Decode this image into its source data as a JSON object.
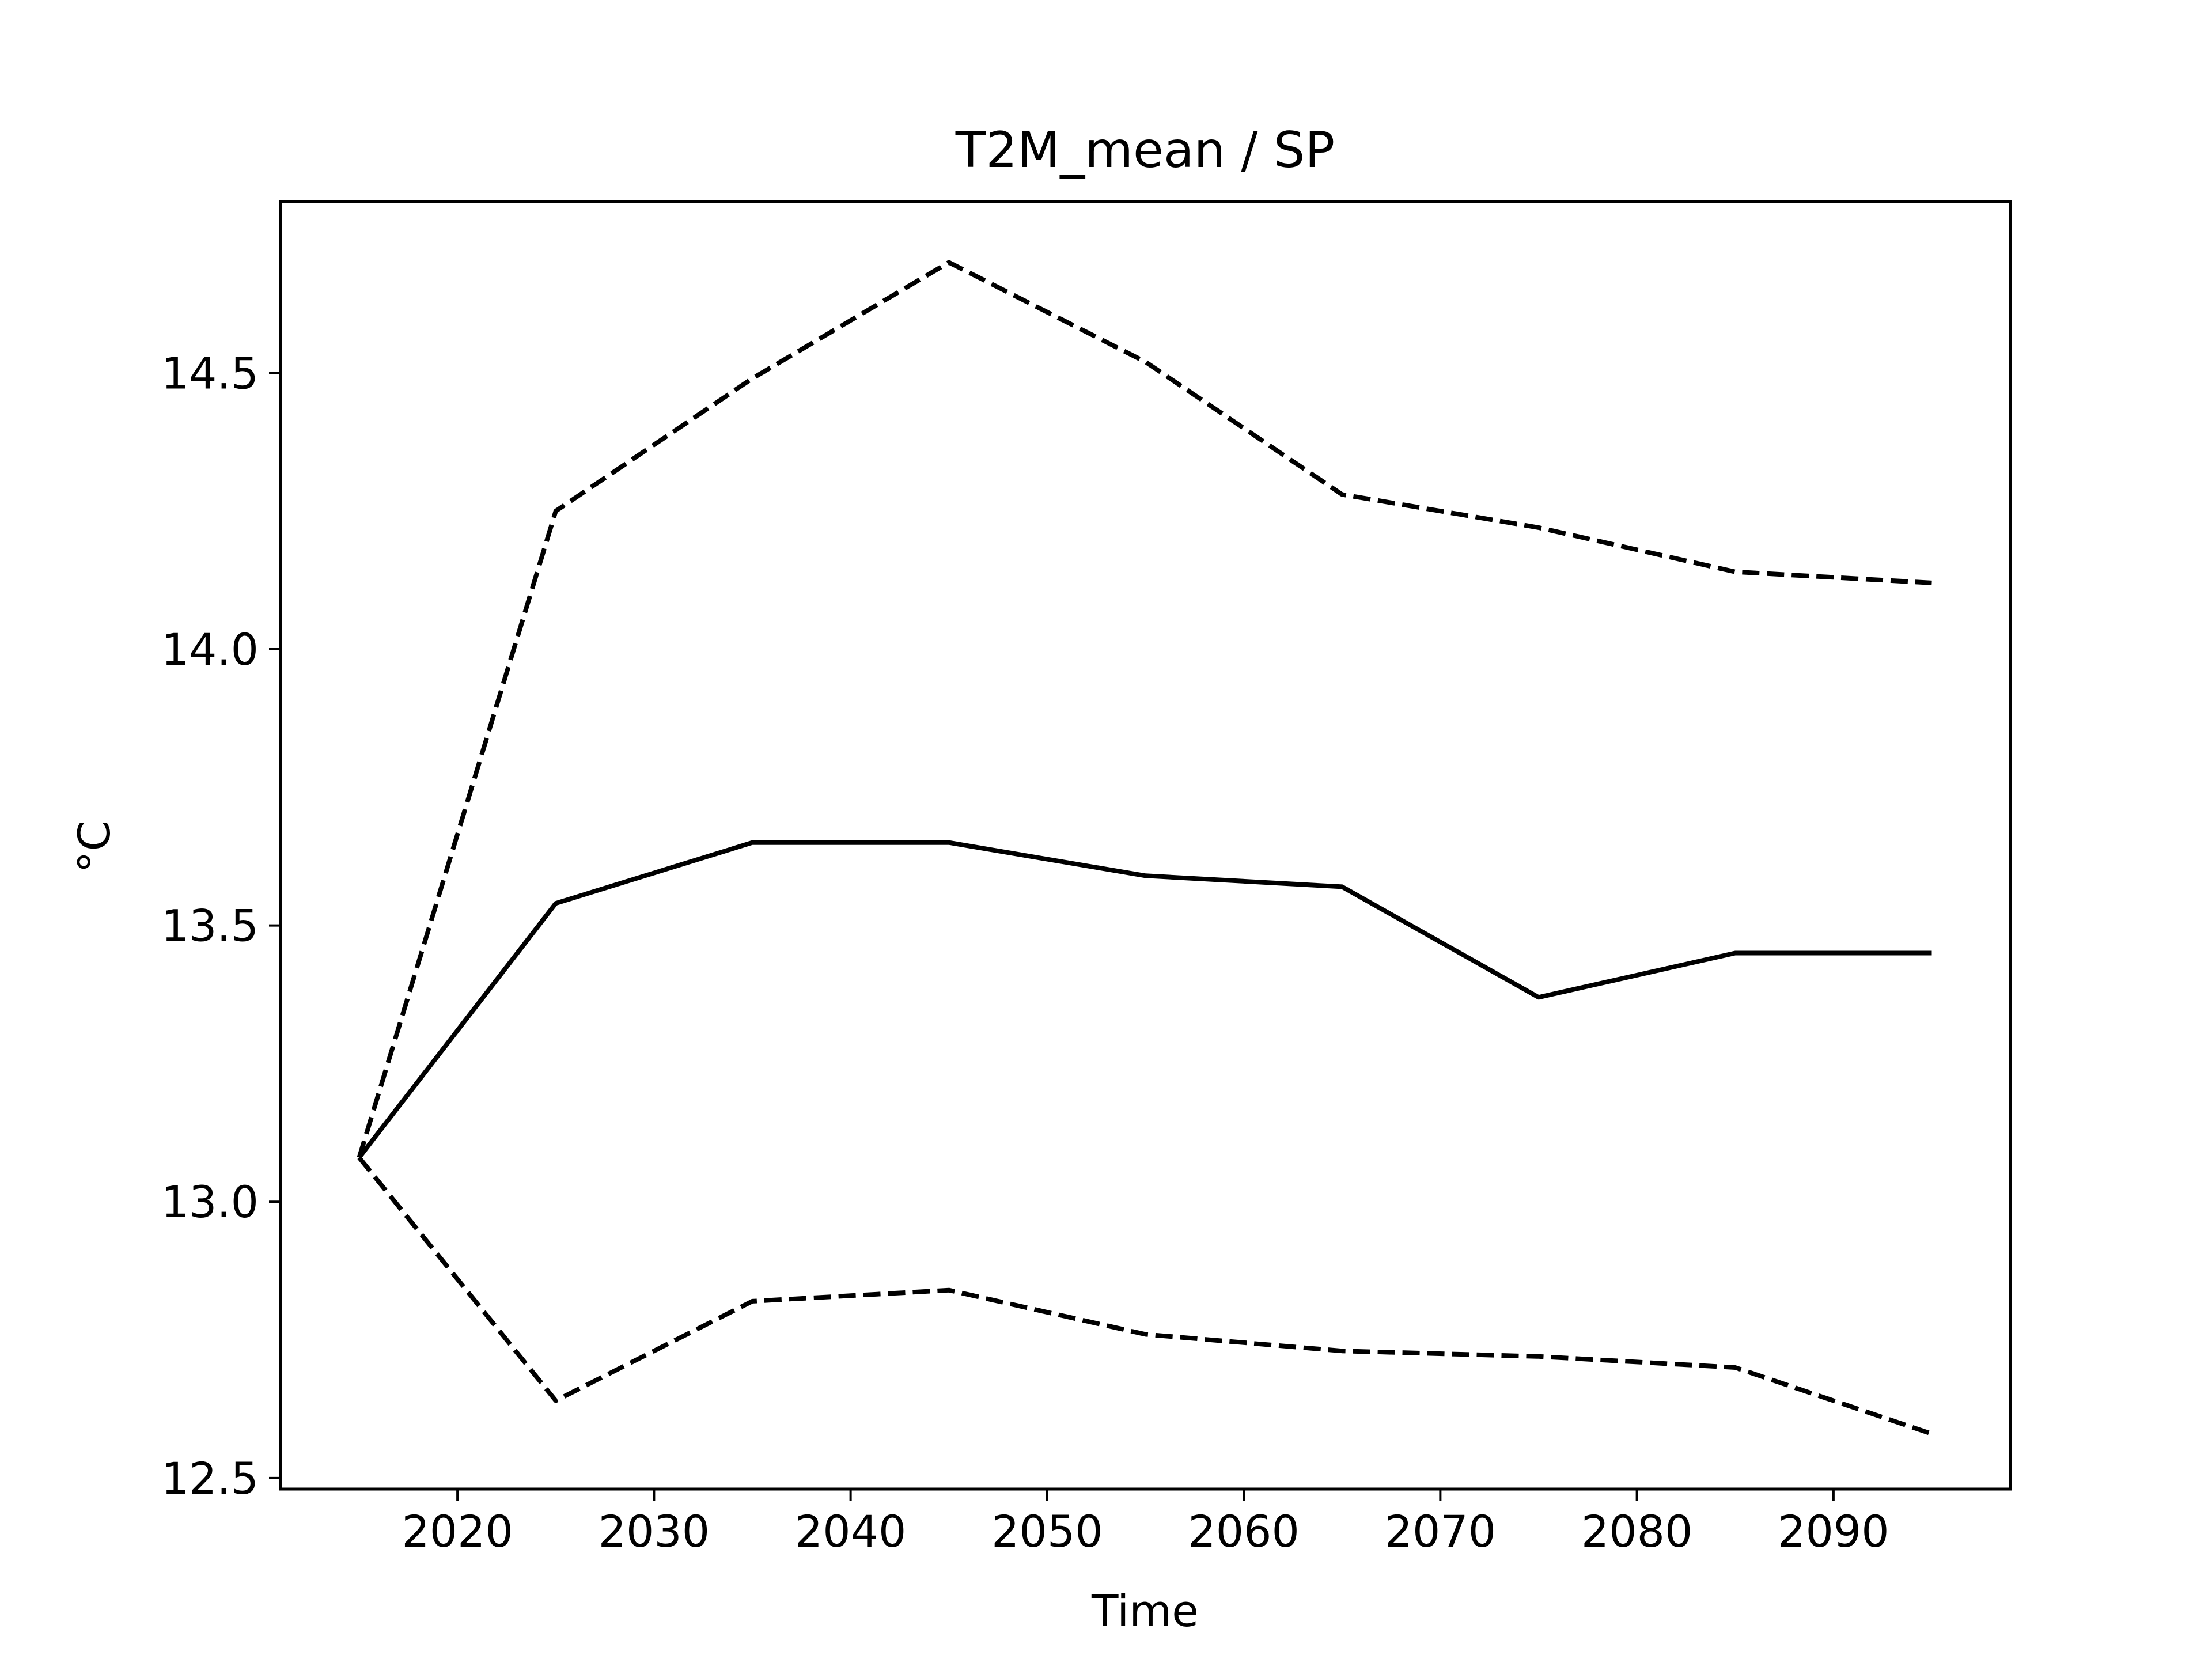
{
  "chart_data": {
    "type": "line",
    "title": "T2M_mean / SP",
    "xlabel": "Time",
    "ylabel": "°C",
    "xlim": [
      2011,
      2099
    ],
    "ylim": [
      12.48,
      14.81
    ],
    "xticks": [
      "2020",
      "2030",
      "2040",
      "2050",
      "2060",
      "2070",
      "2080",
      "2090"
    ],
    "yticks": [
      "12.5",
      "13.0",
      "13.5",
      "14.0",
      "14.5"
    ],
    "grid": false,
    "legend": "none",
    "x": [
      2015,
      2025,
      2035,
      2045,
      2055,
      2065,
      2075,
      2085,
      2095
    ],
    "series": [
      {
        "style": "dashed",
        "color": "#000000",
        "values": [
          13.08,
          14.25,
          14.49,
          14.7,
          14.52,
          14.28,
          14.22,
          14.14,
          14.12
        ]
      },
      {
        "style": "solid",
        "color": "#000000",
        "values": [
          13.08,
          13.54,
          13.65,
          13.65,
          13.59,
          13.57,
          13.37,
          13.45,
          13.45
        ]
      },
      {
        "style": "dashed",
        "color": "#000000",
        "values": [
          13.08,
          12.64,
          12.82,
          12.84,
          12.76,
          12.73,
          12.72,
          12.7,
          12.58
        ]
      }
    ]
  }
}
